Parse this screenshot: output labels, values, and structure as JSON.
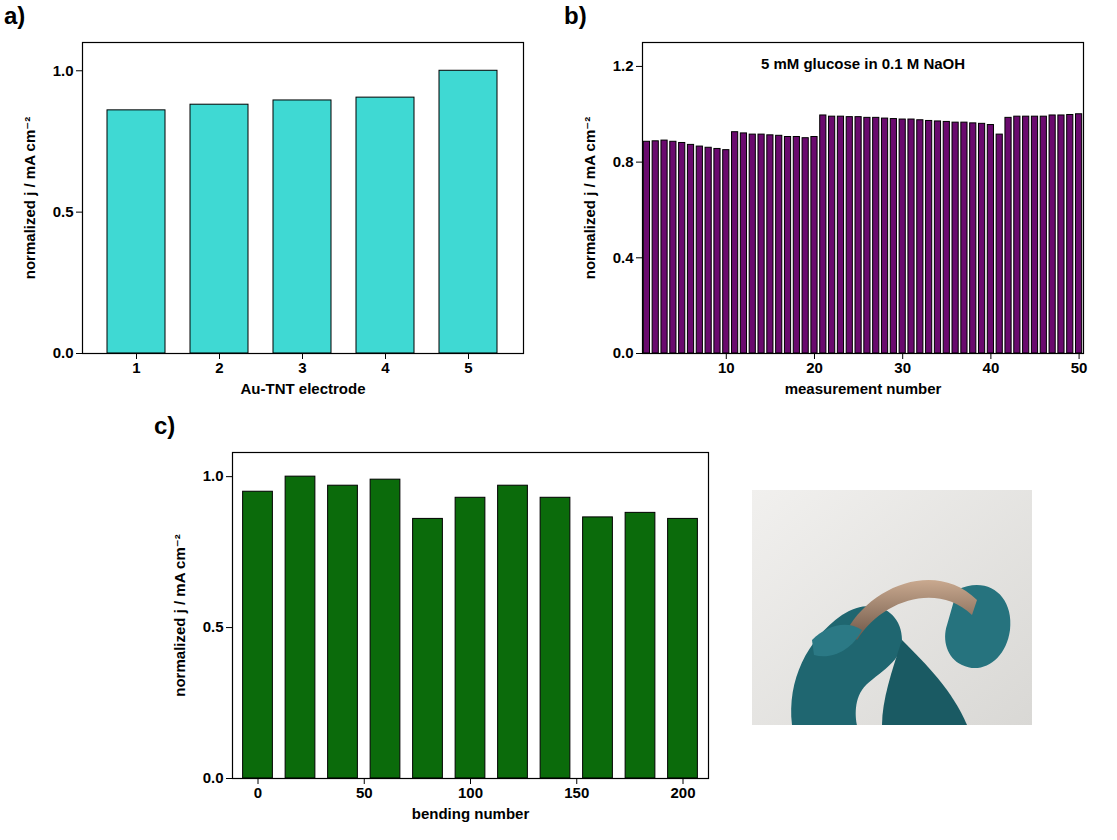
{
  "chart_data": [
    {
      "panel": "a)",
      "type": "bar",
      "x_label": "Au-TNT electrode",
      "y_label": "normalized j / mA cm⁻²",
      "categories": [
        1,
        2,
        3,
        4,
        5
      ],
      "values": [
        0.86,
        0.88,
        0.895,
        0.905,
        1.0
      ],
      "color": "#3fd9d3",
      "ylim": [
        0,
        1.1
      ],
      "yticks": [
        {
          "value": 0,
          "label": "0.0"
        },
        {
          "value": 0.5,
          "label": "0.5"
        },
        {
          "value": 1,
          "label": "1.0"
        }
      ]
    },
    {
      "panel": "b)",
      "type": "bar",
      "annotation": "5 mM glucose in 0.1 M NaOH",
      "x_label": "measurement number",
      "y_label": "normalized j / mA cm⁻²",
      "x": [
        1,
        2,
        3,
        4,
        5,
        6,
        7,
        8,
        9,
        10,
        11,
        12,
        13,
        14,
        15,
        16,
        17,
        18,
        19,
        20,
        21,
        22,
        23,
        24,
        25,
        26,
        27,
        28,
        29,
        30,
        31,
        32,
        33,
        34,
        35,
        36,
        37,
        38,
        39,
        40,
        41,
        42,
        43,
        44,
        45,
        46,
        47,
        48,
        49,
        50
      ],
      "values": [
        0.885,
        0.887,
        0.89,
        0.885,
        0.88,
        0.872,
        0.865,
        0.86,
        0.855,
        0.85,
        0.925,
        0.92,
        0.915,
        0.915,
        0.912,
        0.91,
        0.905,
        0.905,
        0.9,
        0.905,
        0.995,
        0.99,
        0.99,
        0.988,
        0.988,
        0.985,
        0.985,
        0.982,
        0.98,
        0.978,
        0.978,
        0.975,
        0.972,
        0.97,
        0.968,
        0.965,
        0.965,
        0.962,
        0.96,
        0.955,
        0.915,
        0.985,
        0.99,
        0.99,
        0.99,
        0.99,
        0.995,
        0.995,
        0.997,
        1.0
      ],
      "color": "#6a0a6e",
      "xlim": [
        0.5,
        50.5
      ],
      "xticks": [
        10,
        20,
        30,
        40,
        50
      ],
      "ylim": [
        0,
        1.3
      ],
      "yticks": [
        {
          "value": 0,
          "label": "0.0"
        },
        {
          "value": 0.4,
          "label": "0.4"
        },
        {
          "value": 0.8,
          "label": "0.8"
        },
        {
          "value": 1.2,
          "label": "1.2"
        }
      ]
    },
    {
      "panel": "c)",
      "type": "bar",
      "x_label": "bending number",
      "y_label": "normalized j / mA cm⁻²",
      "x": [
        0,
        20,
        40,
        60,
        80,
        100,
        120,
        140,
        160,
        180,
        200
      ],
      "values": [
        0.95,
        1.0,
        0.97,
        0.99,
        0.86,
        0.93,
        0.97,
        0.93,
        0.865,
        0.88,
        0.86
      ],
      "color": "#0b6b0b",
      "xlim": [
        -12,
        212
      ],
      "xticks": [
        0,
        50,
        100,
        150,
        200
      ],
      "ylim": [
        0,
        1.08
      ],
      "yticks": [
        {
          "value": 0,
          "label": "0.0"
        },
        {
          "value": 0.5,
          "label": "0.5"
        },
        {
          "value": 1,
          "label": "1.0"
        }
      ]
    }
  ]
}
